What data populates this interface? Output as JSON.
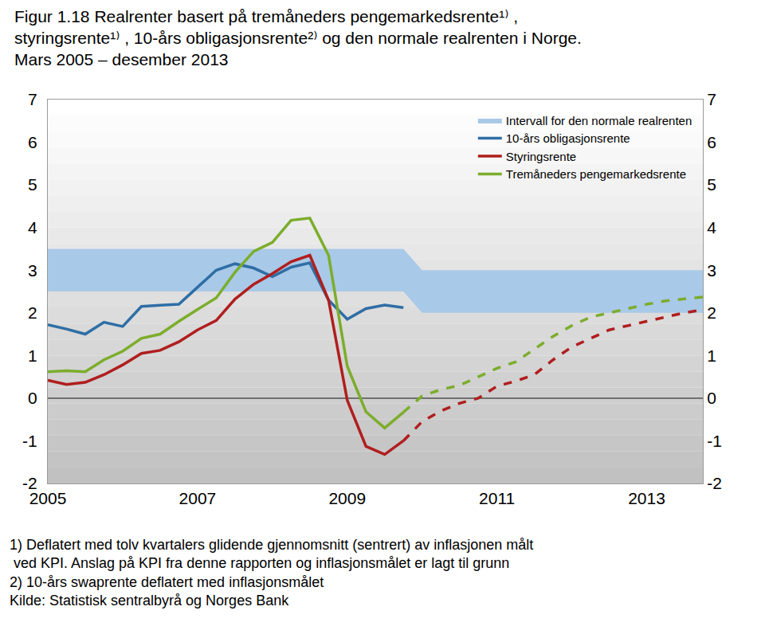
{
  "chart_data": {
    "type": "line",
    "title": "Figur 1.18 Realrenter basert på tremåneders pengemarkedsrente¹⁾ ,\nstyringsrente¹⁾ , 10-års obligasjonsrente²⁾ og den normale realrenten i Norge.\nMars 2005 – desember 2013",
    "notes": [
      "1) Deflatert med tolv kvartalers glidende gjennomsnitt (sentrert) av inflasjonen målt",
      " ved KPI. Anslag på KPI fra denne rapporten og inflasjonsmålet er lagt til grunn",
      "2) 10-års swaprente deflatert med inflasjonsmålet"
    ],
    "source": "Kilde: Statistisk sentralbyrå og Norges Bank",
    "x": [
      2005,
      2005.25,
      2005.5,
      2005.75,
      2006,
      2006.25,
      2006.5,
      2006.75,
      2007,
      2007.25,
      2007.5,
      2007.75,
      2008,
      2008.25,
      2008.5,
      2008.75,
      2009,
      2009.25,
      2009.5,
      2009.75,
      2010,
      2010.25,
      2010.5,
      2010.75,
      2011,
      2011.25,
      2011.5,
      2011.75,
      2012,
      2012.25,
      2012.5,
      2012.75,
      2013,
      2013.25,
      2013.5,
      2013.75
    ],
    "xlim": [
      2005,
      2013.75
    ],
    "xticks": [
      2005,
      2007,
      2009,
      2011,
      2013
    ],
    "ylim": [
      -2,
      7
    ],
    "yticks": [
      -2,
      -1,
      0,
      1,
      2,
      3,
      4,
      5,
      6,
      7
    ],
    "y2lim": [
      -2,
      7
    ],
    "y2ticks": [
      -2,
      -1,
      0,
      1,
      2,
      3,
      4,
      5,
      6,
      7
    ],
    "grid": false,
    "legend": "upper right",
    "series": [
      {
        "name": "Intervall for den normale realrenten",
        "type": "band",
        "color": "#a9c9e8",
        "lower": [
          2.5,
          2.5,
          2.5,
          2.5,
          2.5,
          2.5,
          2.5,
          2.5,
          2.5,
          2.5,
          2.5,
          2.5,
          2.5,
          2.5,
          2.5,
          2.5,
          2.5,
          2.5,
          2.5,
          2.5,
          2,
          2,
          2,
          2,
          2,
          2,
          2,
          2,
          2,
          2,
          2,
          2,
          2,
          2,
          2,
          2
        ],
        "upper": [
          3.5,
          3.5,
          3.5,
          3.5,
          3.5,
          3.5,
          3.5,
          3.5,
          3.5,
          3.5,
          3.5,
          3.5,
          3.5,
          3.5,
          3.5,
          3.5,
          3.5,
          3.5,
          3.5,
          3.5,
          3,
          3,
          3,
          3,
          3,
          3,
          3,
          3,
          3,
          3,
          3,
          3,
          3,
          3,
          3,
          3
        ]
      },
      {
        "name": "10-års obligasjonsrente",
        "type": "line",
        "color": "#2f6ea5",
        "line_style": "solid",
        "values": [
          1.72,
          1.62,
          1.5,
          1.78,
          1.68,
          2.15,
          2.18,
          2.2,
          2.6,
          3.0,
          3.15,
          3.05,
          2.85,
          3.07,
          3.17,
          2.3,
          1.85,
          2.1,
          2.18,
          2.12,
          null,
          null,
          null,
          null,
          null,
          null,
          null,
          null,
          null,
          null,
          null,
          null,
          null,
          null,
          null,
          null
        ]
      },
      {
        "name": "Styringsrente",
        "type": "line",
        "color": "#b01e1e",
        "line_style": "solid",
        "values": [
          0.42,
          0.32,
          0.37,
          0.55,
          0.78,
          1.05,
          1.12,
          1.32,
          1.6,
          1.82,
          2.32,
          2.67,
          2.92,
          3.2,
          3.35,
          2.3,
          -0.05,
          -1.13,
          -1.32,
          -1.0,
          null,
          null,
          null,
          null,
          null,
          null,
          null,
          null,
          null,
          null,
          null,
          null,
          null,
          null,
          null,
          null
        ],
        "forecast": [
          null,
          null,
          null,
          null,
          null,
          null,
          null,
          null,
          null,
          null,
          null,
          null,
          null,
          null,
          null,
          null,
          null,
          null,
          null,
          -1.0,
          -0.55,
          -0.3,
          -0.12,
          0.0,
          0.28,
          0.4,
          0.55,
          0.9,
          1.2,
          1.4,
          1.6,
          1.7,
          1.8,
          1.9,
          2.0,
          2.07
        ]
      },
      {
        "name": "Tremåneders pengemarkedsrente",
        "type": "line",
        "color": "#7cad2c",
        "line_style": "solid",
        "values": [
          0.62,
          0.64,
          0.62,
          0.9,
          1.1,
          1.4,
          1.5,
          1.8,
          2.08,
          2.35,
          2.95,
          3.44,
          3.65,
          4.17,
          4.22,
          3.35,
          0.75,
          -0.32,
          -0.7,
          -0.33,
          null,
          null,
          null,
          null,
          null,
          null,
          null,
          null,
          null,
          null,
          null,
          null,
          null,
          null,
          null,
          null
        ],
        "forecast": [
          null,
          null,
          null,
          null,
          null,
          null,
          null,
          null,
          null,
          null,
          null,
          null,
          null,
          null,
          null,
          null,
          null,
          null,
          null,
          -0.33,
          0.05,
          0.2,
          0.3,
          0.5,
          0.7,
          0.85,
          1.15,
          1.45,
          1.7,
          1.9,
          2.0,
          2.1,
          2.2,
          2.28,
          2.33,
          2.37
        ]
      }
    ]
  }
}
